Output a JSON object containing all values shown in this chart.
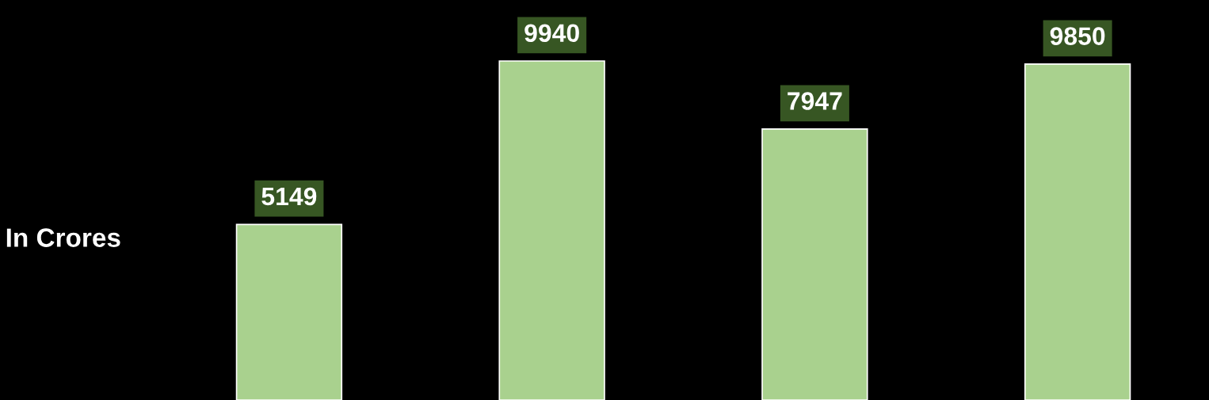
{
  "chart_data": {
    "type": "bar",
    "ylabel": "In Crores",
    "categories": [
      null,
      null,
      null,
      null
    ],
    "values": [
      5149,
      9940,
      7947,
      9850
    ],
    "color": "#a9d18e",
    "data_labels": true,
    "grid": false,
    "legend": false
  }
}
